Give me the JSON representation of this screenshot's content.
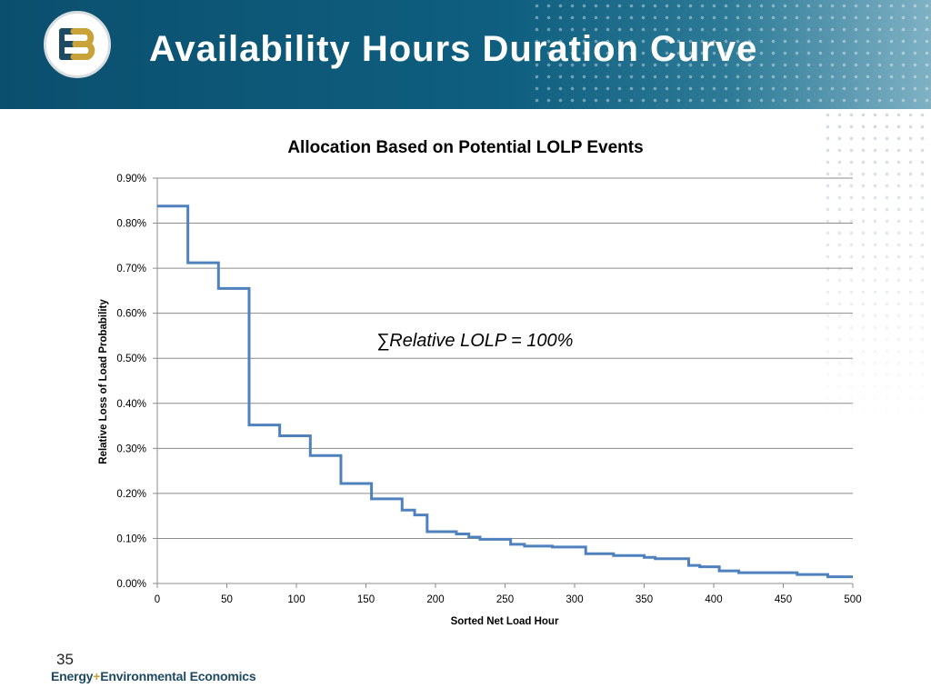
{
  "page": {
    "title": "Availability Hours Duration Curve",
    "slide_number": "35",
    "company_name_part1": "Energy",
    "company_name_plus": "+",
    "company_name_part2": "Environmental Economics"
  },
  "colors": {
    "header": "#0f5f80",
    "line": "#4f81bd",
    "logo_gold": "#c9a23a",
    "logo_blue": "#1e4a63"
  },
  "chart_data": {
    "type": "line",
    "title": "Allocation Based on Potential LOLP Events",
    "xlabel": "Sorted Net Load Hour",
    "ylabel": "Relative Loss of Load Probability",
    "xlim": [
      0,
      500
    ],
    "ylim": [
      0,
      0.009
    ],
    "grid": true,
    "x_ticks": [
      "0",
      "50",
      "100",
      "150",
      "200",
      "250",
      "300",
      "350",
      "400",
      "450",
      "500"
    ],
    "y_ticks": [
      "0.00%",
      "0.10%",
      "0.20%",
      "0.30%",
      "0.40%",
      "0.50%",
      "0.60%",
      "0.70%",
      "0.80%",
      "0.90%"
    ],
    "annotation": "∑Relative LOLP = 100%",
    "series": [
      {
        "step": true,
        "x": [
          0,
          22,
          44,
          66,
          88,
          110,
          132,
          154,
          176,
          185,
          194,
          215,
          224,
          232,
          254,
          264,
          284,
          308,
          328,
          350,
          358,
          382,
          390,
          404,
          418,
          460,
          482,
          500
        ],
        "y": [
          0.00838,
          0.00712,
          0.00655,
          0.00352,
          0.00328,
          0.00284,
          0.00222,
          0.00188,
          0.00163,
          0.00152,
          0.00115,
          0.0011,
          0.00103,
          0.00098,
          0.00087,
          0.00083,
          0.00081,
          0.00066,
          0.00062,
          0.00058,
          0.00055,
          0.0004,
          0.00037,
          0.00028,
          0.00024,
          0.0002,
          0.00015,
          0.00015
        ]
      }
    ]
  }
}
